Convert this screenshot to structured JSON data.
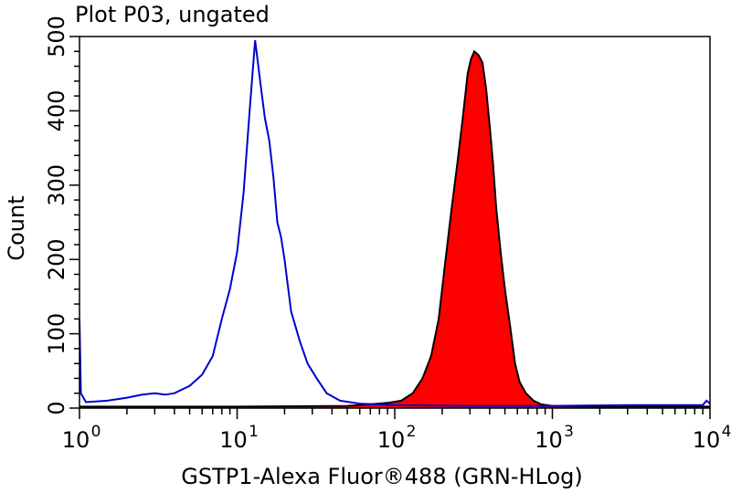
{
  "chart_data": {
    "type": "area",
    "title": "Plot P03, ungated",
    "xlabel": "GSTP1-Alexa Fluor®488 (GRN-HLog)",
    "ylabel": "Count",
    "xscale": "log",
    "xlim": [
      1,
      10000
    ],
    "ylim": [
      0,
      500
    ],
    "x_ticks": [
      {
        "base": "10",
        "exp": "0"
      },
      {
        "base": "10",
        "exp": "1"
      },
      {
        "base": "10",
        "exp": "2"
      },
      {
        "base": "10",
        "exp": "3"
      },
      {
        "base": "10",
        "exp": "4"
      }
    ],
    "y_ticks": [
      "0",
      "100",
      "200",
      "300",
      "400",
      "500"
    ],
    "grid": false,
    "series": [
      {
        "color": "#0000cc",
        "fill": "none",
        "points": [
          [
            1.0,
            120
          ],
          [
            1.02,
            20
          ],
          [
            1.1,
            8
          ],
          [
            1.5,
            10
          ],
          [
            2.0,
            14
          ],
          [
            2.5,
            18
          ],
          [
            3.0,
            20
          ],
          [
            3.5,
            18
          ],
          [
            4.0,
            20
          ],
          [
            5.0,
            30
          ],
          [
            6.0,
            45
          ],
          [
            7.0,
            70
          ],
          [
            8.0,
            120
          ],
          [
            9.0,
            160
          ],
          [
            10.0,
            210
          ],
          [
            11.0,
            290
          ],
          [
            12.0,
            400
          ],
          [
            13.0,
            495
          ],
          [
            14.0,
            440
          ],
          [
            15.0,
            390
          ],
          [
            16.0,
            360
          ],
          [
            17.0,
            310
          ],
          [
            18.0,
            250
          ],
          [
            19.0,
            230
          ],
          [
            20.0,
            200
          ],
          [
            22.0,
            130
          ],
          [
            25.0,
            90
          ],
          [
            28.0,
            60
          ],
          [
            32.0,
            40
          ],
          [
            37.0,
            20
          ],
          [
            45.0,
            10
          ],
          [
            60.0,
            6
          ],
          [
            100.0,
            4
          ],
          [
            300.0,
            3
          ],
          [
            1000.0,
            3
          ],
          [
            3000.0,
            4
          ],
          [
            9000.0,
            4
          ],
          [
            9500.0,
            10
          ],
          [
            10000.0,
            6
          ]
        ]
      },
      {
        "color": "#ff0000",
        "stroke": "#000000",
        "fill": "#ff0000",
        "points": [
          [
            1.0,
            2
          ],
          [
            10.0,
            2
          ],
          [
            50.0,
            3
          ],
          [
            70.0,
            5
          ],
          [
            90.0,
            7
          ],
          [
            110.0,
            10
          ],
          [
            130.0,
            20
          ],
          [
            150.0,
            40
          ],
          [
            170.0,
            70
          ],
          [
            190.0,
            120
          ],
          [
            210.0,
            200
          ],
          [
            230.0,
            270
          ],
          [
            250.0,
            330
          ],
          [
            270.0,
            390
          ],
          [
            290.0,
            450
          ],
          [
            305.0,
            470
          ],
          [
            320.0,
            480
          ],
          [
            340.0,
            475
          ],
          [
            360.0,
            465
          ],
          [
            380.0,
            430
          ],
          [
            400.0,
            380
          ],
          [
            420.0,
            330
          ],
          [
            440.0,
            270
          ],
          [
            470.0,
            210
          ],
          [
            500.0,
            160
          ],
          [
            540.0,
            110
          ],
          [
            580.0,
            60
          ],
          [
            620.0,
            35
          ],
          [
            680.0,
            20
          ],
          [
            760.0,
            10
          ],
          [
            850.0,
            5
          ],
          [
            1000.0,
            3
          ],
          [
            2000.0,
            2
          ],
          [
            10000.0,
            2
          ]
        ]
      }
    ]
  }
}
